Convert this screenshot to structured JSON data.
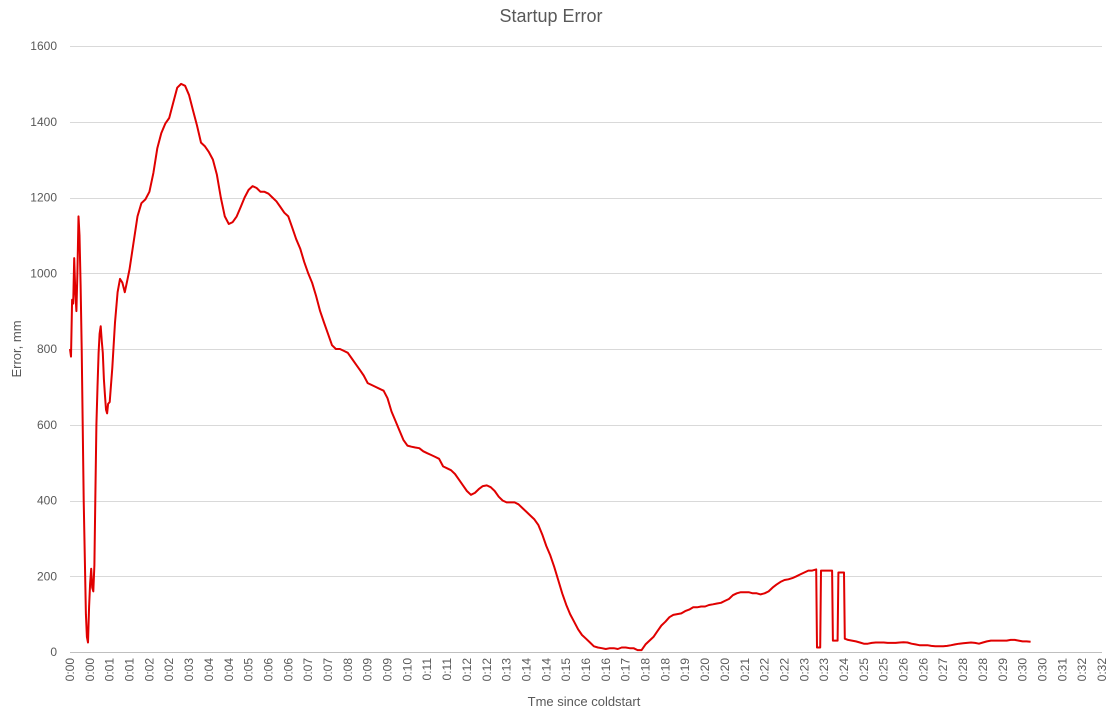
{
  "chart_data": {
    "type": "line",
    "title": "Startup Error",
    "xlabel": "Tme since coldstart",
    "ylabel": "Error, mm",
    "ylim": [
      0,
      1600
    ],
    "yticks": [
      0,
      200,
      400,
      600,
      800,
      1000,
      1200,
      1400,
      1600
    ],
    "grid": true,
    "legend": "none",
    "x_tick_labels": [
      "0:00",
      "0:00",
      "0:01",
      "0:01",
      "0:02",
      "0:02",
      "0:03",
      "0:04",
      "0:04",
      "0:05",
      "0:06",
      "0:06",
      "0:07",
      "0:07",
      "0:08",
      "0:09",
      "0:09",
      "0:10",
      "0:11",
      "0:11",
      "0:12",
      "0:12",
      "0:13",
      "0:14",
      "0:14",
      "0:15",
      "0:16",
      "0:16",
      "0:17",
      "0:18",
      "0:18",
      "0:19",
      "0:20",
      "0:20",
      "0:21",
      "0:22",
      "0:22",
      "0:23",
      "0:23",
      "0:24",
      "0:25",
      "0:25",
      "0:26",
      "0:26",
      "0:27",
      "0:28",
      "0:28",
      "0:29",
      "0:30",
      "0:30",
      "0:31",
      "0:32",
      "0:32"
    ],
    "series": [
      {
        "color": "#e00000",
        "points": [
          [
            0.0,
            800
          ],
          [
            0.013,
            780
          ],
          [
            0.027,
            930
          ],
          [
            0.04,
            920
          ],
          [
            0.053,
            1040
          ],
          [
            0.067,
            950
          ],
          [
            0.08,
            900
          ],
          [
            0.093,
            1000
          ],
          [
            0.107,
            1150
          ],
          [
            0.12,
            1100
          ],
          [
            0.133,
            970
          ],
          [
            0.147,
            800
          ],
          [
            0.16,
            600
          ],
          [
            0.173,
            400
          ],
          [
            0.187,
            250
          ],
          [
            0.2,
            100
          ],
          [
            0.213,
            40
          ],
          [
            0.227,
            25
          ],
          [
            0.24,
            120
          ],
          [
            0.253,
            180
          ],
          [
            0.267,
            220
          ],
          [
            0.28,
            170
          ],
          [
            0.293,
            160
          ],
          [
            0.307,
            230
          ],
          [
            0.32,
            420
          ],
          [
            0.333,
            600
          ],
          [
            0.347,
            700
          ],
          [
            0.36,
            790
          ],
          [
            0.373,
            840
          ],
          [
            0.387,
            860
          ],
          [
            0.4,
            820
          ],
          [
            0.413,
            790
          ],
          [
            0.427,
            720
          ],
          [
            0.44,
            680
          ],
          [
            0.453,
            640
          ],
          [
            0.467,
            630
          ],
          [
            0.48,
            655
          ],
          [
            0.5,
            660
          ],
          [
            0.533,
            750
          ],
          [
            0.567,
            870
          ],
          [
            0.6,
            950
          ],
          [
            0.63,
            985
          ],
          [
            0.66,
            975
          ],
          [
            0.69,
            950
          ],
          [
            0.72,
            980
          ],
          [
            0.75,
            1010
          ],
          [
            0.8,
            1080
          ],
          [
            0.85,
            1150
          ],
          [
            0.9,
            1185
          ],
          [
            0.95,
            1195
          ],
          [
            1.0,
            1215
          ],
          [
            1.05,
            1265
          ],
          [
            1.1,
            1330
          ],
          [
            1.15,
            1370
          ],
          [
            1.2,
            1395
          ],
          [
            1.25,
            1410
          ],
          [
            1.3,
            1450
          ],
          [
            1.35,
            1490
          ],
          [
            1.4,
            1500
          ],
          [
            1.45,
            1495
          ],
          [
            1.5,
            1470
          ],
          [
            1.55,
            1430
          ],
          [
            1.6,
            1390
          ],
          [
            1.65,
            1345
          ],
          [
            1.7,
            1335
          ],
          [
            1.75,
            1320
          ],
          [
            1.8,
            1300
          ],
          [
            1.85,
            1260
          ],
          [
            1.9,
            1200
          ],
          [
            1.95,
            1150
          ],
          [
            2.0,
            1130
          ],
          [
            2.05,
            1135
          ],
          [
            2.1,
            1150
          ],
          [
            2.15,
            1175
          ],
          [
            2.2,
            1200
          ],
          [
            2.25,
            1220
          ],
          [
            2.3,
            1230
          ],
          [
            2.35,
            1225
          ],
          [
            2.4,
            1215
          ],
          [
            2.45,
            1215
          ],
          [
            2.5,
            1210
          ],
          [
            2.55,
            1200
          ],
          [
            2.6,
            1190
          ],
          [
            2.65,
            1175
          ],
          [
            2.7,
            1160
          ],
          [
            2.75,
            1150
          ],
          [
            2.8,
            1120
          ],
          [
            2.85,
            1090
          ],
          [
            2.9,
            1065
          ],
          [
            2.95,
            1030
          ],
          [
            3.0,
            1000
          ],
          [
            3.05,
            975
          ],
          [
            3.1,
            940
          ],
          [
            3.15,
            900
          ],
          [
            3.2,
            870
          ],
          [
            3.25,
            840
          ],
          [
            3.3,
            810
          ],
          [
            3.35,
            800
          ],
          [
            3.4,
            800
          ],
          [
            3.45,
            795
          ],
          [
            3.5,
            790
          ],
          [
            3.55,
            775
          ],
          [
            3.6,
            760
          ],
          [
            3.65,
            745
          ],
          [
            3.7,
            730
          ],
          [
            3.75,
            710
          ],
          [
            3.8,
            705
          ],
          [
            3.85,
            700
          ],
          [
            3.9,
            695
          ],
          [
            3.95,
            690
          ],
          [
            4.0,
            670
          ],
          [
            4.05,
            635
          ],
          [
            4.1,
            610
          ],
          [
            4.15,
            585
          ],
          [
            4.2,
            560
          ],
          [
            4.25,
            545
          ],
          [
            4.3,
            542
          ],
          [
            4.35,
            540
          ],
          [
            4.4,
            538
          ],
          [
            4.45,
            530
          ],
          [
            4.5,
            525
          ],
          [
            4.55,
            520
          ],
          [
            4.6,
            515
          ],
          [
            4.65,
            510
          ],
          [
            4.7,
            490
          ],
          [
            4.75,
            485
          ],
          [
            4.8,
            480
          ],
          [
            4.85,
            470
          ],
          [
            4.9,
            455
          ],
          [
            4.95,
            440
          ],
          [
            5.0,
            425
          ],
          [
            5.05,
            415
          ],
          [
            5.1,
            420
          ],
          [
            5.15,
            430
          ],
          [
            5.2,
            438
          ],
          [
            5.25,
            440
          ],
          [
            5.3,
            435
          ],
          [
            5.35,
            425
          ],
          [
            5.4,
            410
          ],
          [
            5.45,
            400
          ],
          [
            5.5,
            395
          ],
          [
            5.55,
            395
          ],
          [
            5.6,
            395
          ],
          [
            5.65,
            390
          ],
          [
            5.7,
            380
          ],
          [
            5.75,
            370
          ],
          [
            5.8,
            360
          ],
          [
            5.85,
            350
          ],
          [
            5.9,
            335
          ],
          [
            5.95,
            310
          ],
          [
            6.0,
            280
          ],
          [
            6.05,
            255
          ],
          [
            6.1,
            225
          ],
          [
            6.15,
            190
          ],
          [
            6.2,
            155
          ],
          [
            6.25,
            125
          ],
          [
            6.3,
            100
          ],
          [
            6.35,
            80
          ],
          [
            6.4,
            60
          ],
          [
            6.45,
            45
          ],
          [
            6.5,
            35
          ],
          [
            6.55,
            25
          ],
          [
            6.6,
            15
          ],
          [
            6.65,
            12
          ],
          [
            6.7,
            10
          ],
          [
            6.75,
            8
          ],
          [
            6.8,
            10
          ],
          [
            6.85,
            10
          ],
          [
            6.9,
            8
          ],
          [
            6.95,
            12
          ],
          [
            7.0,
            12
          ],
          [
            7.05,
            10
          ],
          [
            7.1,
            10
          ],
          [
            7.15,
            5
          ],
          [
            7.2,
            5
          ],
          [
            7.25,
            20
          ],
          [
            7.3,
            30
          ],
          [
            7.35,
            40
          ],
          [
            7.4,
            55
          ],
          [
            7.45,
            70
          ],
          [
            7.5,
            80
          ],
          [
            7.55,
            92
          ],
          [
            7.6,
            98
          ],
          [
            7.65,
            100
          ],
          [
            7.7,
            102
          ],
          [
            7.75,
            108
          ],
          [
            7.8,
            112
          ],
          [
            7.85,
            118
          ],
          [
            7.9,
            118
          ],
          [
            7.95,
            120
          ],
          [
            8.0,
            120
          ],
          [
            8.05,
            124
          ],
          [
            8.1,
            126
          ],
          [
            8.15,
            128
          ],
          [
            8.2,
            130
          ],
          [
            8.25,
            135
          ],
          [
            8.3,
            140
          ],
          [
            8.35,
            150
          ],
          [
            8.4,
            155
          ],
          [
            8.45,
            158
          ],
          [
            8.5,
            158
          ],
          [
            8.55,
            158
          ],
          [
            8.6,
            155
          ],
          [
            8.65,
            155
          ],
          [
            8.7,
            152
          ],
          [
            8.75,
            155
          ],
          [
            8.8,
            160
          ],
          [
            8.85,
            170
          ],
          [
            8.9,
            178
          ],
          [
            8.95,
            185
          ],
          [
            9.0,
            190
          ],
          [
            9.05,
            192
          ],
          [
            9.1,
            195
          ],
          [
            9.15,
            200
          ],
          [
            9.2,
            205
          ],
          [
            9.25,
            210
          ],
          [
            9.3,
            215
          ],
          [
            9.35,
            215
          ],
          [
            9.4,
            218
          ],
          [
            9.41,
            12
          ],
          [
            9.45,
            12
          ],
          [
            9.46,
            215
          ],
          [
            9.5,
            215
          ],
          [
            9.55,
            215
          ],
          [
            9.6,
            215
          ],
          [
            9.61,
            30
          ],
          [
            9.65,
            30
          ],
          [
            9.67,
            30
          ],
          [
            9.68,
            210
          ],
          [
            9.7,
            210
          ],
          [
            9.75,
            210
          ],
          [
            9.76,
            35
          ],
          [
            9.8,
            32
          ],
          [
            9.85,
            30
          ],
          [
            9.9,
            28
          ],
          [
            9.95,
            25
          ],
          [
            10.0,
            22
          ],
          [
            10.05,
            22
          ],
          [
            10.1,
            24
          ],
          [
            10.15,
            25
          ],
          [
            10.2,
            25
          ],
          [
            10.25,
            25
          ],
          [
            10.3,
            24
          ],
          [
            10.35,
            24
          ],
          [
            10.4,
            24
          ],
          [
            10.45,
            25
          ],
          [
            10.5,
            26
          ],
          [
            10.55,
            25
          ],
          [
            10.6,
            22
          ],
          [
            10.65,
            20
          ],
          [
            10.7,
            18
          ],
          [
            10.75,
            18
          ],
          [
            10.8,
            18
          ],
          [
            10.85,
            16
          ],
          [
            10.9,
            15
          ],
          [
            10.95,
            15
          ],
          [
            11.0,
            15
          ],
          [
            11.05,
            16
          ],
          [
            11.1,
            18
          ],
          [
            11.15,
            20
          ],
          [
            11.2,
            22
          ],
          [
            11.25,
            23
          ],
          [
            11.3,
            24
          ],
          [
            11.35,
            25
          ],
          [
            11.4,
            24
          ],
          [
            11.45,
            22
          ],
          [
            11.5,
            25
          ],
          [
            11.55,
            28
          ],
          [
            11.6,
            30
          ],
          [
            11.65,
            30
          ],
          [
            11.7,
            30
          ],
          [
            11.75,
            30
          ],
          [
            11.8,
            30
          ],
          [
            11.85,
            32
          ],
          [
            11.9,
            32
          ],
          [
            11.95,
            30
          ],
          [
            12.0,
            28
          ],
          [
            12.05,
            28
          ],
          [
            12.1,
            27
          ]
        ]
      }
    ]
  }
}
